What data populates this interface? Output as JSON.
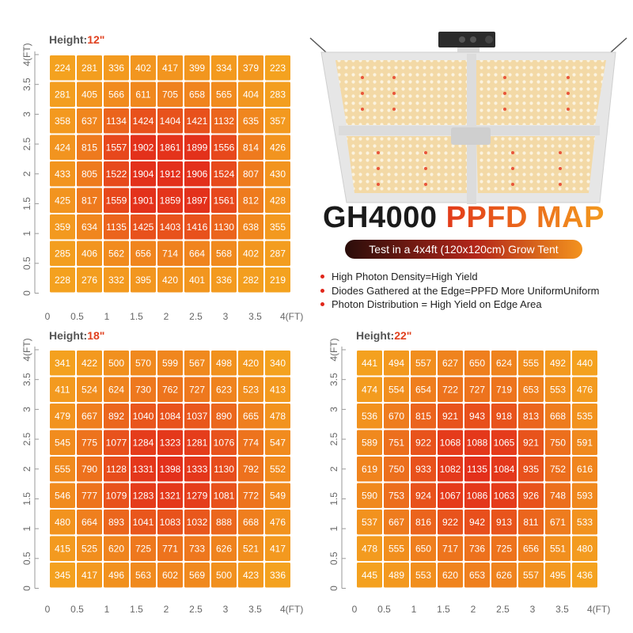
{
  "colors": {
    "accent_red": "#e0261a",
    "accent_orange": "#f39a1e",
    "heat_low": "#f4a21f",
    "heat_high": "#e3301b"
  },
  "header": {
    "model": "GH4000",
    "title_rest": "PPFD MAP",
    "subtitle": "Test in a 4x4ft (120x120cm) Grow Tent"
  },
  "features": [
    "High Photon Density=High Yield",
    "Diodes Gathered at the Edge=PPFD More UniformUniform",
    "Photon Distribution = High Yield on Edge Area"
  ],
  "product_image": {
    "description_icon": "led-grow-light-panel-icon"
  },
  "chart_data": [
    {
      "type": "heatmap",
      "title_label": "Height:",
      "title_value": "12\"",
      "x_ticks": [
        "0",
        "0.5",
        "1",
        "1.5",
        "2",
        "2.5",
        "3",
        "3.5",
        "4(FT)"
      ],
      "y_ticks": [
        "0",
        "0.5",
        "1",
        "1.5",
        "2",
        "2.5",
        "3",
        "3.5",
        "4(FT)"
      ],
      "xlim": [
        0,
        4
      ],
      "ylim": [
        0,
        4
      ],
      "rows": [
        [
          224,
          281,
          336,
          402,
          417,
          399,
          334,
          379,
          223
        ],
        [
          281,
          405,
          566,
          611,
          705,
          658,
          565,
          404,
          283
        ],
        [
          358,
          637,
          1134,
          1424,
          1404,
          1421,
          1132,
          635,
          357
        ],
        [
          424,
          815,
          1557,
          1902,
          1861,
          1899,
          1556,
          814,
          426
        ],
        [
          433,
          805,
          1522,
          1904,
          1912,
          1906,
          1524,
          807,
          430
        ],
        [
          425,
          817,
          1559,
          1901,
          1859,
          1897,
          1561,
          812,
          428
        ],
        [
          359,
          634,
          1135,
          1425,
          1403,
          1416,
          1130,
          638,
          355
        ],
        [
          285,
          406,
          562,
          656,
          714,
          664,
          568,
          402,
          287
        ],
        [
          228,
          276,
          332,
          395,
          420,
          401,
          336,
          282,
          219
        ]
      ]
    },
    {
      "type": "heatmap",
      "title_label": "Height:",
      "title_value": "18\"",
      "x_ticks": [
        "0",
        "0.5",
        "1",
        "1.5",
        "2",
        "2.5",
        "3",
        "3.5",
        "4(FT)"
      ],
      "y_ticks": [
        "0",
        "0.5",
        "1",
        "1.5",
        "2",
        "2.5",
        "3",
        "3.5",
        "4(FT)"
      ],
      "xlim": [
        0,
        4
      ],
      "ylim": [
        0,
        4
      ],
      "rows": [
        [
          341,
          422,
          500,
          570,
          599,
          567,
          498,
          420,
          340
        ],
        [
          411,
          524,
          624,
          730,
          762,
          727,
          623,
          523,
          413
        ],
        [
          479,
          667,
          892,
          1040,
          1084,
          1037,
          890,
          665,
          478
        ],
        [
          545,
          775,
          1077,
          1284,
          1323,
          1281,
          1076,
          774,
          547
        ],
        [
          555,
          790,
          1128,
          1331,
          1398,
          1333,
          1130,
          792,
          552
        ],
        [
          546,
          777,
          1079,
          1283,
          1321,
          1279,
          1081,
          772,
          549
        ],
        [
          480,
          664,
          893,
          1041,
          1083,
          1032,
          888,
          668,
          476
        ],
        [
          415,
          525,
          620,
          725,
          771,
          733,
          626,
          521,
          417
        ],
        [
          345,
          417,
          496,
          563,
          602,
          569,
          500,
          423,
          336
        ]
      ]
    },
    {
      "type": "heatmap",
      "title_label": "Height:",
      "title_value": "22\"",
      "x_ticks": [
        "0",
        "0.5",
        "1",
        "1.5",
        "2",
        "2.5",
        "3",
        "3.5",
        "4(FT)"
      ],
      "y_ticks": [
        "0",
        "0.5",
        "1",
        "1.5",
        "2",
        "2.5",
        "3",
        "3.5",
        "4(FT)"
      ],
      "xlim": [
        0,
        4
      ],
      "ylim": [
        0,
        4
      ],
      "rows": [
        [
          441,
          494,
          557,
          627,
          650,
          624,
          555,
          492,
          440
        ],
        [
          474,
          554,
          654,
          722,
          727,
          719,
          653,
          553,
          476
        ],
        [
          536,
          670,
          815,
          921,
          943,
          918,
          813,
          668,
          535
        ],
        [
          589,
          751,
          922,
          1068,
          1088,
          1065,
          921,
          750,
          591
        ],
        [
          619,
          750,
          933,
          1082,
          1135,
          1084,
          935,
          752,
          616
        ],
        [
          590,
          753,
          924,
          1067,
          1086,
          1063,
          926,
          748,
          593
        ],
        [
          537,
          667,
          816,
          922,
          942,
          913,
          811,
          671,
          533
        ],
        [
          478,
          555,
          650,
          717,
          736,
          725,
          656,
          551,
          480
        ],
        [
          445,
          489,
          553,
          620,
          653,
          626,
          557,
          495,
          436
        ]
      ]
    }
  ]
}
